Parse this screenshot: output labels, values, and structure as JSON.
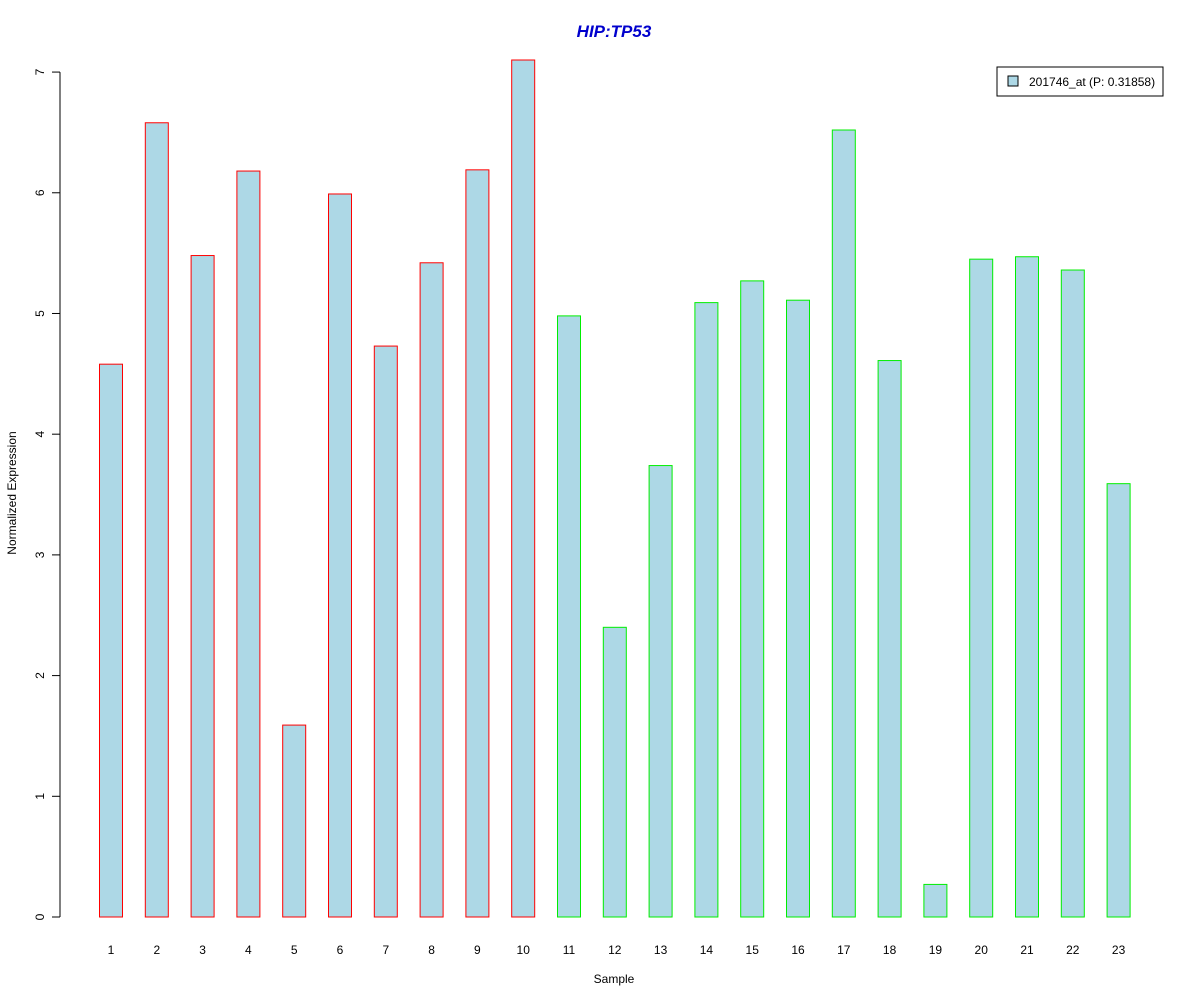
{
  "chart_data": {
    "type": "bar",
    "title": "HIP:TP53",
    "xlabel": "Sample",
    "ylabel": "Normalized Expression",
    "categories": [
      "1",
      "2",
      "3",
      "4",
      "5",
      "6",
      "7",
      "8",
      "9",
      "10",
      "11",
      "12",
      "13",
      "14",
      "15",
      "16",
      "17",
      "18",
      "19",
      "20",
      "21",
      "22",
      "23"
    ],
    "series": [
      {
        "name": "201746_at (P: 0.31858)",
        "values": [
          4.58,
          6.58,
          5.48,
          6.18,
          1.59,
          5.99,
          4.73,
          5.42,
          6.19,
          7.1,
          4.98,
          2.4,
          3.74,
          5.09,
          5.27,
          5.11,
          6.52,
          4.61,
          0.27,
          5.45,
          5.47,
          5.36,
          3.59
        ]
      }
    ],
    "group_border_colors": [
      "#ff0000",
      "#ff0000",
      "#ff0000",
      "#ff0000",
      "#ff0000",
      "#ff0000",
      "#ff0000",
      "#ff0000",
      "#ff0000",
      "#ff0000",
      "#00ee00",
      "#00ee00",
      "#00ee00",
      "#00ee00",
      "#00ee00",
      "#00ee00",
      "#00ee00",
      "#00ee00",
      "#00ee00",
      "#00ee00",
      "#00ee00",
      "#00ee00",
      "#00ee00"
    ],
    "yticks": [
      0,
      1,
      2,
      3,
      4,
      5,
      6,
      7
    ],
    "ylim": [
      0,
      7.1
    ],
    "legend_position": "top-right",
    "grid": false,
    "colors": {
      "bar_fill": "#add8e6",
      "title": "#0000cd"
    }
  }
}
